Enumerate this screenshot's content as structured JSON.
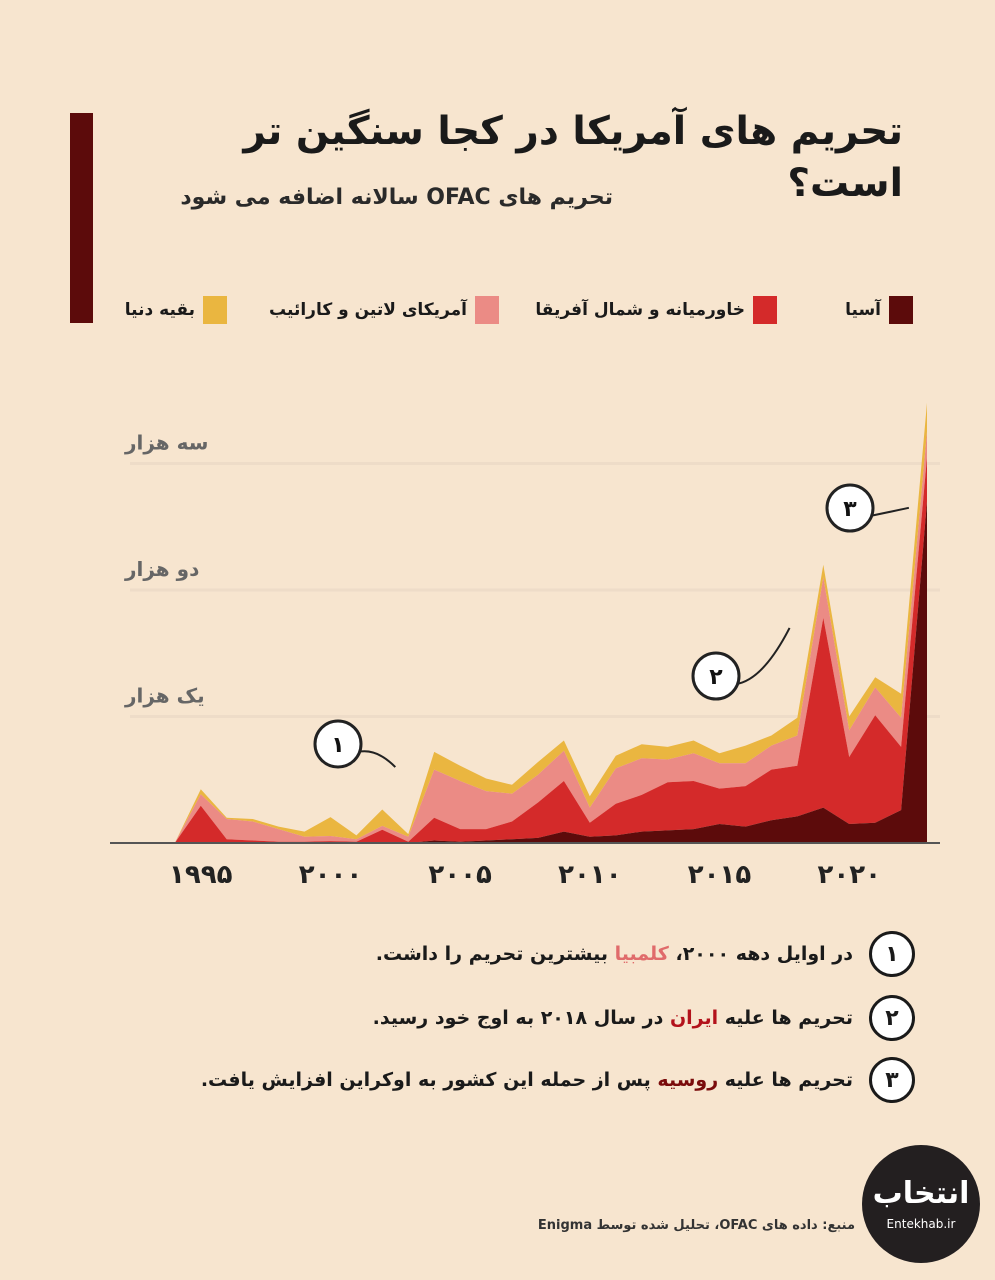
{
  "header": {
    "title": "تحریم های آمریکا در کجا سنگین تر است؟",
    "subtitle": "تحریم های OFAC سالانه اضافه می شود"
  },
  "legend": [
    {
      "label": "آسیا",
      "color": "#5c0b0b"
    },
    {
      "label": "خاورمیانه و شمال آفریقا",
      "color": "#d42a2a"
    },
    {
      "label": "آمریکای لاتین و کارائیب",
      "color": "#eb8b85"
    },
    {
      "label": "بقیه دنیا",
      "color": "#eab640"
    }
  ],
  "chart_data": {
    "type": "area",
    "stacked": true,
    "x": [
      1992,
      1993,
      1994,
      1995,
      1996,
      1997,
      1998,
      1999,
      2000,
      2001,
      2002,
      2003,
      2004,
      2005,
      2006,
      2007,
      2008,
      2009,
      2010,
      2011,
      2012,
      2013,
      2014,
      2015,
      2016,
      2017,
      2018,
      2019,
      2020,
      2021,
      2022,
      2023
    ],
    "series": [
      {
        "name": "آسیا",
        "color": "#5c0b0b",
        "values": [
          0,
          0,
          0,
          5,
          0,
          0,
          0,
          0,
          5,
          0,
          5,
          0,
          20,
          10,
          20,
          30,
          40,
          90,
          50,
          60,
          90,
          100,
          110,
          150,
          130,
          180,
          210,
          280,
          150,
          160,
          260,
          2700
        ]
      },
      {
        "name": "خاورمیانه و شمال آفریقا",
        "color": "#d42a2a",
        "values": [
          0,
          0,
          0,
          290,
          30,
          20,
          10,
          10,
          10,
          10,
          100,
          10,
          180,
          100,
          90,
          140,
          280,
          400,
          110,
          250,
          290,
          380,
          380,
          280,
          320,
          400,
          400,
          1500,
          530,
          850,
          500,
          350
        ]
      },
      {
        "name": "آمریکای لاتین و کارائیب",
        "color": "#eb8b85",
        "values": [
          0,
          0,
          0,
          90,
          160,
          150,
          100,
          40,
          40,
          20,
          30,
          40,
          380,
          380,
          300,
          220,
          220,
          240,
          120,
          280,
          290,
          180,
          220,
          200,
          180,
          190,
          240,
          320,
          210,
          220,
          230,
          200
        ]
      },
      {
        "name": "بقیه دنیا",
        "color": "#eab640",
        "values": [
          0,
          0,
          0,
          40,
          10,
          20,
          20,
          40,
          150,
          30,
          130,
          20,
          140,
          120,
          100,
          70,
          100,
          80,
          90,
          100,
          110,
          100,
          100,
          80,
          140,
          80,
          140,
          100,
          110,
          80,
          190,
          230
        ]
      }
    ],
    "xticks": [
      {
        "value": 1995,
        "label": "۱۹۹۵"
      },
      {
        "value": 2000,
        "label": "۲۰۰۰"
      },
      {
        "value": 2005,
        "label": "۲۰۰۵"
      },
      {
        "value": 2010,
        "label": "۲۰۱۰"
      },
      {
        "value": 2015,
        "label": "۲۰۱۵"
      },
      {
        "value": 2020,
        "label": "۲۰۲۰"
      }
    ],
    "yticks": [
      {
        "value": 1000,
        "label": "یک هزار"
      },
      {
        "value": 2000,
        "label": "دو هزار"
      },
      {
        "value": 3000,
        "label": "سه هزار"
      }
    ],
    "ylim": [
      0,
      3700
    ],
    "xlim": [
      1991.5,
      2023.5
    ],
    "grid": true,
    "legend_position": "top",
    "annotations": [
      {
        "label": "۱",
        "x": 2002.5,
        "y": 600
      },
      {
        "label": "۲",
        "x": 2017.7,
        "y": 1700
      },
      {
        "label": "۳",
        "x": 2022.3,
        "y": 2650
      }
    ],
    "grid_color": "#eedcc8",
    "axis_color": "#555555"
  },
  "notes": [
    {
      "num": "۱",
      "before": "در اوایل دهه ۲۰۰۰، ",
      "highlight": "کلمبیا",
      "after": " بیشترین تحریم را داشت."
    },
    {
      "num": "۲",
      "before": "تحریم ها علیه ",
      "highlight": "ایران",
      "after": " در سال ۲۰۱۸ به اوج خود رسید."
    },
    {
      "num": "۳",
      "before": "تحریم ها علیه ",
      "highlight": "روسیه",
      "after": " پس از حمله این کشور به اوکراین افزایش یافت."
    }
  ],
  "source": "منبع: داده های OFAC، تحلیل شده توسط Enigma",
  "logo": {
    "name": "انتخاب",
    "url": "Entekhab.ir"
  }
}
